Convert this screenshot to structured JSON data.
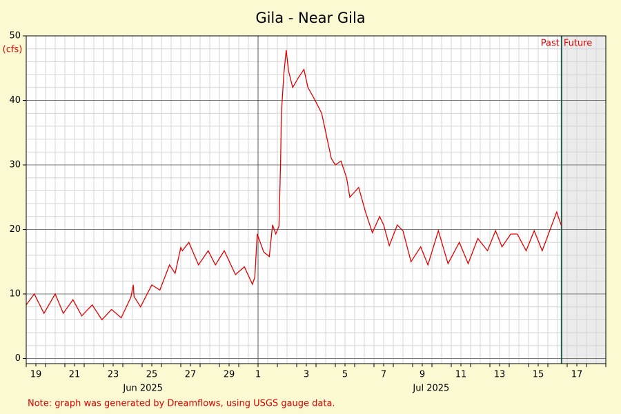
{
  "chart_data": {
    "type": "line",
    "title": "Gila - Near Gila",
    "y_label": "(cfs)",
    "note": "Note: graph was generated by Dreamflows, using USGS gauge data.",
    "color": "#e00000",
    "grid": true,
    "x": [
      "2025-06-19T00:00",
      "2025-06-19T10:00",
      "2025-06-19T22:00",
      "2025-06-20T12:00",
      "2025-06-20T22:00",
      "2025-06-21T10:00",
      "2025-06-21T21:00",
      "2025-06-22T10:00",
      "2025-06-22T22:00",
      "2025-06-23T10:00",
      "2025-06-23T22:00",
      "2025-06-24T10:00",
      "2025-06-24T13:00",
      "2025-06-24T14:00",
      "2025-06-24T22:00",
      "2025-06-25T12:00",
      "2025-06-25T22:00",
      "2025-06-26T10:00",
      "2025-06-26T17:00",
      "2025-06-27T00:00",
      "2025-06-27T02:00",
      "2025-06-27T10:00",
      "2025-06-27T22:00",
      "2025-06-28T10:00",
      "2025-06-28T19:00",
      "2025-06-29T06:00",
      "2025-06-29T20:00",
      "2025-06-30T07:00",
      "2025-06-30T17:00",
      "2025-06-30T20:00",
      "2025-06-30T23:00",
      "2025-07-01T07:00",
      "2025-07-01T14:00",
      "2025-07-01T18:00",
      "2025-07-01T22:00",
      "2025-07-02T02:00",
      "2025-07-02T04:00",
      "2025-07-02T05:00",
      "2025-07-02T08:00",
      "2025-07-02T11:00",
      "2025-07-02T14:00",
      "2025-07-02T19:00",
      "2025-07-03T02:00",
      "2025-07-03T09:00",
      "2025-07-03T14:00",
      "2025-07-03T22:00",
      "2025-07-04T07:00",
      "2025-07-04T19:00",
      "2025-07-05T00:00",
      "2025-07-05T07:00",
      "2025-07-05T14:00",
      "2025-07-05T18:00",
      "2025-07-06T05:00",
      "2025-07-06T14:00",
      "2025-07-06T22:00",
      "2025-07-07T07:00",
      "2025-07-07T12:00",
      "2025-07-07T19:00",
      "2025-07-08T05:00",
      "2025-07-08T12:00",
      "2025-07-08T22:00",
      "2025-07-09T10:00",
      "2025-07-09T19:00",
      "2025-07-10T08:00",
      "2025-07-10T20:00",
      "2025-07-11T10:00",
      "2025-07-11T21:00",
      "2025-07-12T09:00",
      "2025-07-12T21:00",
      "2025-07-13T07:00",
      "2025-07-13T15:00",
      "2025-07-14T02:00",
      "2025-07-14T10:00",
      "2025-07-14T21:00",
      "2025-07-15T07:00",
      "2025-07-15T17:00",
      "2025-07-16T11:00",
      "2025-07-16T17:00"
    ],
    "values": [
      8.3,
      10.0,
      7.0,
      10.0,
      7.0,
      9.1,
      6.6,
      8.3,
      6.0,
      7.6,
      6.3,
      9.5,
      11.4,
      9.6,
      8.0,
      11.4,
      10.6,
      14.5,
      13.2,
      17.2,
      16.7,
      18.0,
      14.5,
      16.7,
      14.5,
      16.7,
      13.0,
      14.2,
      11.5,
      12.6,
      19.3,
      16.5,
      15.8,
      20.7,
      19.3,
      20.5,
      30.6,
      38.0,
      44.0,
      47.8,
      44.5,
      42.0,
      43.5,
      44.8,
      42.0,
      40.2,
      38.0,
      31.0,
      30.0,
      30.6,
      28.0,
      25.0,
      26.5,
      22.5,
      19.5,
      22.0,
      20.7,
      17.5,
      20.7,
      19.8,
      15.0,
      17.3,
      14.5,
      19.8,
      14.7,
      18.0,
      14.7,
      18.6,
      16.7,
      19.8,
      17.3,
      19.3,
      19.3,
      16.7,
      19.8,
      16.7,
      22.7,
      20.5
    ],
    "xlim": [
      "2025-06-19T00:00",
      "2025-07-19T00:00"
    ],
    "xticks": [
      {
        "value": "2025-06-19T12:00",
        "label": "19"
      },
      {
        "value": "2025-06-21T12:00",
        "label": "21"
      },
      {
        "value": "2025-06-23T12:00",
        "label": "23"
      },
      {
        "value": "2025-06-25T12:00",
        "label": "25"
      },
      {
        "value": "2025-06-27T12:00",
        "label": "27"
      },
      {
        "value": "2025-06-29T12:00",
        "label": "29"
      },
      {
        "value": "2025-07-01T00:00",
        "label": "1"
      },
      {
        "value": "2025-07-03T12:00",
        "label": "3"
      },
      {
        "value": "2025-07-05T12:00",
        "label": "5"
      },
      {
        "value": "2025-07-07T12:00",
        "label": "7"
      },
      {
        "value": "2025-07-09T12:00",
        "label": "9"
      },
      {
        "value": "2025-07-11T12:00",
        "label": "11"
      },
      {
        "value": "2025-07-13T12:00",
        "label": "13"
      },
      {
        "value": "2025-07-15T12:00",
        "label": "15"
      },
      {
        "value": "2025-07-17T12:00",
        "label": "17"
      }
    ],
    "month_labels": [
      {
        "value": "2025-06-25T01:00",
        "label": "Jun 2025"
      },
      {
        "value": "2025-07-09T23:00",
        "label": "Jul 2025"
      }
    ],
    "month_separator": "2025-07-01T00:00",
    "ylim": [
      -0.8,
      50
    ],
    "yticks": [
      0,
      10,
      20,
      30,
      40,
      50
    ],
    "now": {
      "value": "2025-07-16T17:00",
      "past_label": "Past",
      "future_label": "Future"
    }
  }
}
